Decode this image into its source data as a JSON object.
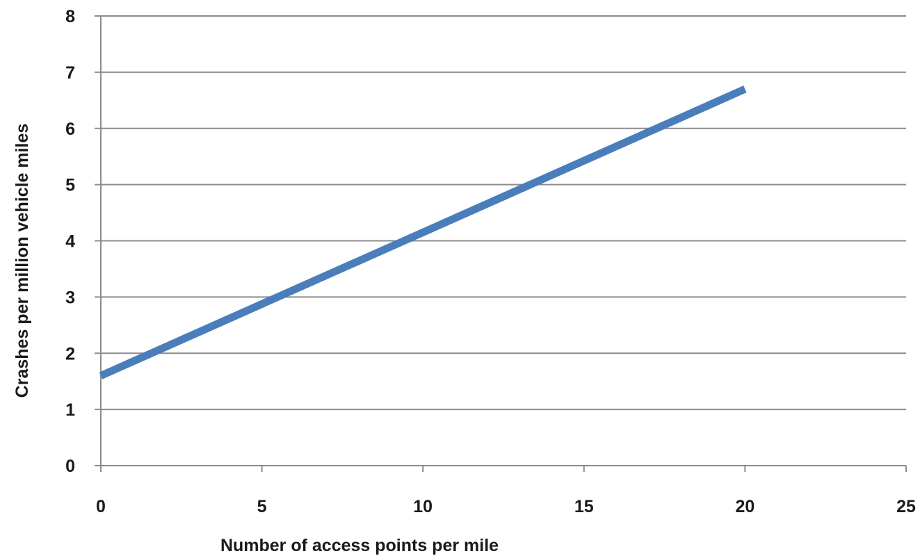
{
  "chart_data": {
    "type": "line",
    "title": "",
    "xlabel": "Number of access points per mile",
    "ylabel": "Crashes per million vehicle miles",
    "xlim": [
      0,
      25
    ],
    "ylim": [
      0,
      8
    ],
    "x_ticks": [
      "0",
      "5",
      "10",
      "15",
      "20",
      "25"
    ],
    "y_ticks": [
      "0",
      "1",
      "2",
      "3",
      "4",
      "5",
      "6",
      "7",
      "8"
    ],
    "grid": "horizontal",
    "legend": "none",
    "series": [
      {
        "color": "#4a7ebb",
        "x": [
          0,
          20
        ],
        "y": [
          1.6,
          6.7
        ]
      }
    ]
  }
}
